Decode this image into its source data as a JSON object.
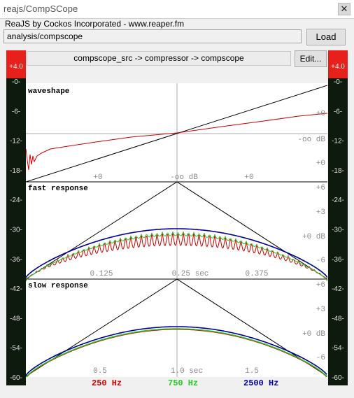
{
  "window": {
    "title": "reajs/CompSCope",
    "close_glyph": "✕"
  },
  "header": {
    "info": "ReaJS by Cockos Incorporated - www.reaper.fm"
  },
  "toolbar": {
    "path": "analysis/compscope",
    "load_label": "Load"
  },
  "chain": {
    "text": "compscope_src -> compressor -> compscope",
    "edit_label": "Edit..."
  },
  "meters": {
    "peak_left": "+4.0",
    "peak_right": "+4.0",
    "scale": [
      "-0-",
      "-6-",
      "-12-",
      "-18-",
      "-24-",
      "-30-",
      "-36-",
      "-42-",
      "-48-",
      "-54-",
      "-60-"
    ]
  },
  "panels": {
    "waveshape": {
      "title": "waveshape",
      "labels": {
        "right_top": "+0",
        "center": "-oo dB",
        "right_bottom": "+0",
        "x_left": "+0",
        "x_center": "-oo dB",
        "x_right": "+0"
      }
    },
    "fast": {
      "title": "fast response",
      "y_labels": [
        "+6",
        "+3",
        "+0 dB",
        "-6"
      ],
      "x_labels": [
        "0.125",
        "0.25 sec",
        "0.375"
      ]
    },
    "slow": {
      "title": "slow response",
      "y_labels": [
        "+6",
        "+3",
        "+0 dB",
        "-6"
      ],
      "x_labels": [
        "0.5",
        "1.0 sec",
        "1.5"
      ]
    }
  },
  "legend": [
    {
      "label": "250 Hz",
      "color": "#cc0000"
    },
    {
      "label": "750 Hz",
      "color": "#22cc22"
    },
    {
      "label": "2500 Hz",
      "color": "#000099"
    }
  ],
  "colors": {
    "meter_bg": "#0f1a0f",
    "meter_peak": "#e8201c",
    "meter_text": "#e8e8e8",
    "grid": "#a8a8a8",
    "scope_label": "#8a8a8a"
  }
}
